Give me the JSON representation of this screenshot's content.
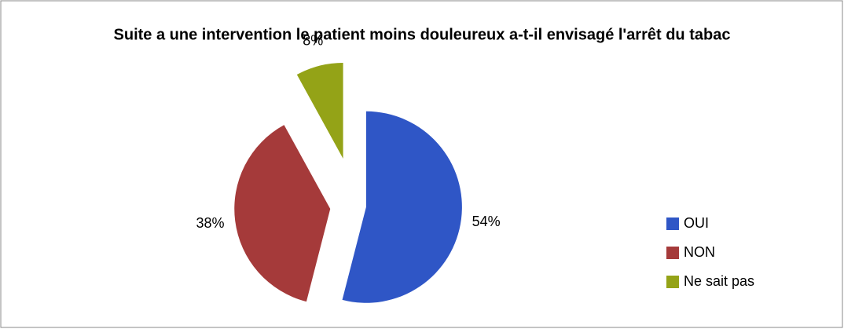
{
  "chart_data": {
    "type": "pie",
    "title": "Suite a une intervention le patient moins douleureux a-t-il envisagé l'arrêt du tabac",
    "categories": [
      "OUI",
      "NON",
      "Ne sait pas"
    ],
    "values": [
      54,
      38,
      8
    ],
    "value_labels": [
      "54%",
      "38%",
      "8%"
    ],
    "colors": [
      "#2f56c6",
      "#a53a3a",
      "#94a317"
    ],
    "legend": "right"
  }
}
